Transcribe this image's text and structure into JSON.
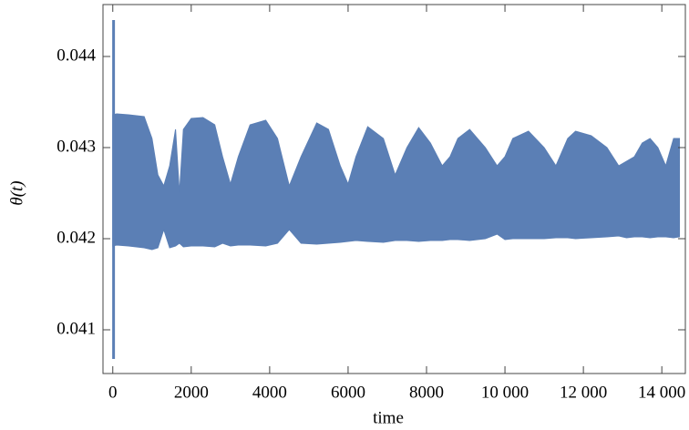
{
  "chart_data": {
    "type": "band",
    "y_label": "θ(t)",
    "x_label": "time",
    "color": "#5b7fb5",
    "x": [
      0,
      100,
      400,
      800,
      1000,
      1150,
      1300,
      1450,
      1600,
      1700,
      1800,
      2000,
      2300,
      2600,
      2800,
      3000,
      3200,
      3500,
      3900,
      4200,
      4500,
      4800,
      5200,
      5500,
      5800,
      6000,
      6200,
      6500,
      6900,
      7200,
      7500,
      7800,
      8100,
      8400,
      8600,
      8800,
      9100,
      9500,
      9800,
      10000,
      10200,
      10600,
      11000,
      11300,
      11600,
      11800,
      12200,
      12600,
      12900,
      13100,
      13300,
      13500,
      13700,
      13900,
      14100,
      14300,
      14450
    ],
    "upper": [
      0.04336,
      0.04337,
      0.04336,
      0.04334,
      0.0431,
      0.0427,
      0.04258,
      0.0428,
      0.0432,
      0.0425,
      0.0432,
      0.04332,
      0.04333,
      0.04325,
      0.0429,
      0.0426,
      0.0429,
      0.04325,
      0.0433,
      0.0431,
      0.04258,
      0.0429,
      0.04327,
      0.0432,
      0.0428,
      0.0426,
      0.0429,
      0.04323,
      0.0431,
      0.0427,
      0.043,
      0.04322,
      0.04305,
      0.0428,
      0.0429,
      0.0431,
      0.0432,
      0.043,
      0.0428,
      0.0429,
      0.0431,
      0.04318,
      0.043,
      0.0428,
      0.0431,
      0.04318,
      0.04313,
      0.043,
      0.0428,
      0.04285,
      0.0429,
      0.04305,
      0.0431,
      0.043,
      0.0428,
      0.0431,
      0.0431
    ],
    "lower": [
      0.04192,
      0.04193,
      0.04192,
      0.0419,
      0.04188,
      0.0419,
      0.0421,
      0.0419,
      0.04192,
      0.04195,
      0.04191,
      0.04192,
      0.04192,
      0.04191,
      0.04195,
      0.04192,
      0.04193,
      0.04193,
      0.04192,
      0.04195,
      0.0421,
      0.04195,
      0.04194,
      0.04195,
      0.04196,
      0.04197,
      0.04198,
      0.04197,
      0.04196,
      0.04198,
      0.04198,
      0.04197,
      0.04198,
      0.04198,
      0.04199,
      0.04199,
      0.04198,
      0.042,
      0.04205,
      0.04199,
      0.042,
      0.042,
      0.042,
      0.04201,
      0.04201,
      0.042,
      0.04201,
      0.04202,
      0.04203,
      0.04201,
      0.04202,
      0.04202,
      0.04201,
      0.04202,
      0.04202,
      0.04201,
      0.04202
    ],
    "spike": {
      "x": 20,
      "min": 0.04068,
      "max": 0.0444
    },
    "xlim": [
      -250,
      14600
    ],
    "ylim": [
      0.04052,
      0.04457
    ],
    "xticks": [
      0,
      2000,
      4000,
      6000,
      8000,
      {
        "value": 10000,
        "label": "10 000"
      },
      {
        "value": 12000,
        "label": "12 000"
      },
      {
        "value": 14000,
        "label": "14 000"
      }
    ],
    "yticks": [
      0.041,
      0.042,
      0.043,
      0.044
    ]
  }
}
